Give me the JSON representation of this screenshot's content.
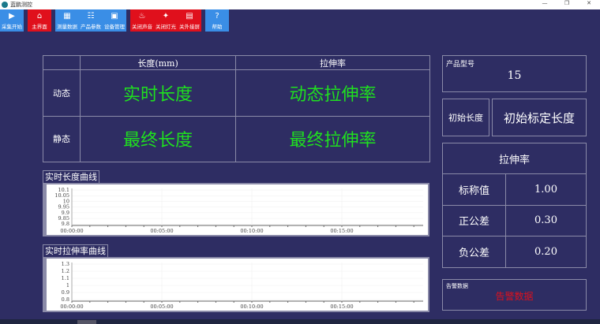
{
  "window": {
    "title": "蓝鹏测控",
    "minimize": "—",
    "maximize": "❐",
    "close": "✕"
  },
  "toolbar": [
    {
      "label": "采集开始",
      "icon": "play-icon",
      "glyph": "▶",
      "color": "blue"
    },
    {
      "label": "主界面",
      "icon": "home-icon",
      "glyph": "⌂",
      "color": "red"
    },
    {
      "label": "测量数据",
      "icon": "data-grid-icon",
      "glyph": "▦",
      "color": "blue"
    },
    {
      "label": "产品参数",
      "icon": "list-icon",
      "glyph": "☷",
      "color": "blue"
    },
    {
      "label": "设备管理",
      "icon": "device-icon",
      "glyph": "▣",
      "color": "blue"
    },
    {
      "label": "关闭声音",
      "icon": "alarm-icon",
      "glyph": "♨",
      "color": "red"
    },
    {
      "label": "关闭灯光",
      "icon": "light-icon",
      "glyph": "✦",
      "color": "red"
    },
    {
      "label": "关外接屏",
      "icon": "screen-icon",
      "glyph": "▤",
      "color": "red"
    },
    {
      "label": "帮助",
      "icon": "help-icon",
      "glyph": "?",
      "color": "blue"
    }
  ],
  "measure_table": {
    "col_length": "长度(mm)",
    "col_stretch": "拉伸率",
    "row_dynamic": "动态",
    "row_static": "静态",
    "dynamic_length": "实时长度",
    "dynamic_stretch": "动态拉伸率",
    "static_length": "最终长度",
    "static_stretch": "最终拉伸率"
  },
  "chart_length": {
    "title": "实时长度曲线",
    "y_ticks": [
      "10.1",
      "10.05",
      "10",
      "9.95",
      "9.9",
      "9.85",
      "9.8"
    ],
    "x_ticks": [
      "00:00:00",
      "00:05:00",
      "00:10:00",
      "00:15:00"
    ]
  },
  "chart_stretch": {
    "title": "实时拉伸率曲线",
    "y_ticks": [
      "1.3",
      "1.2",
      "1.1",
      "1",
      "0.9",
      "0.8"
    ],
    "x_ticks": [
      "00:00:00",
      "00:05:00",
      "00:10:00",
      "00:15:00"
    ]
  },
  "product": {
    "label": "产品型号",
    "value": "15"
  },
  "initial": {
    "label": "初始长度",
    "value": "初始标定长度"
  },
  "stretch_panel": {
    "title": "拉伸率",
    "rows": [
      {
        "label": "标称值",
        "value": "1.00"
      },
      {
        "label": "正公差",
        "value": "0.30"
      },
      {
        "label": "负公差",
        "value": "0.20"
      }
    ]
  },
  "alarm": {
    "label": "告警数据",
    "value": "告警数据",
    "color": "#e0101c"
  }
}
